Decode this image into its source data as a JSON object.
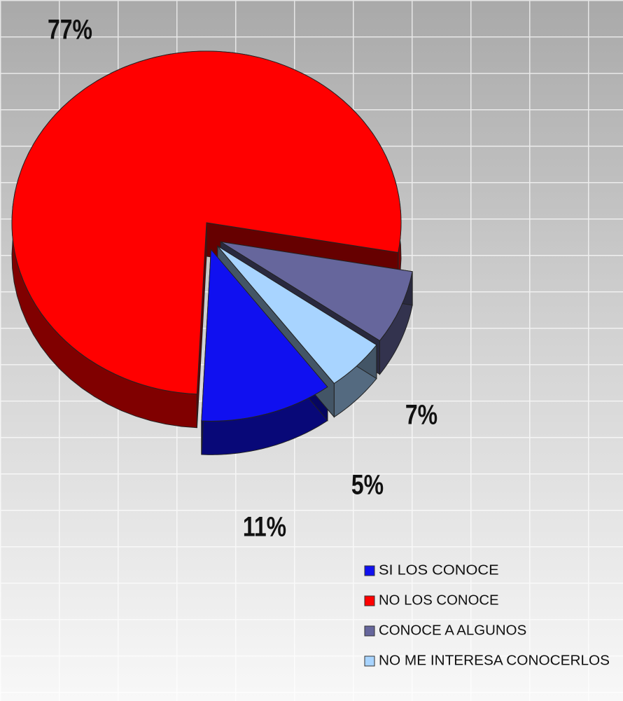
{
  "chart_data": {
    "type": "pie",
    "categories": [
      "SI LOS CONOCE",
      "NO LOS CONOCE",
      "CONOCE A ALGUNOS",
      "NO ME INTERESA CONOCERLOS"
    ],
    "values": [
      11,
      77,
      7,
      5
    ],
    "value_labels": [
      "11%",
      "77%",
      "7%",
      "5%"
    ],
    "colors": [
      "#1010f0",
      "#ff0000",
      "#66669c",
      "#a8d4ff"
    ],
    "legend": "bottom-right"
  }
}
